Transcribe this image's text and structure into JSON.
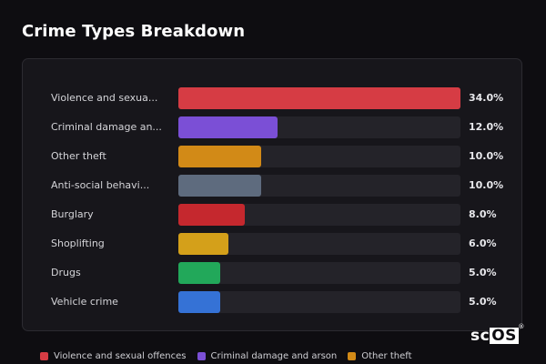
{
  "title": "Crime Types Breakdown",
  "logo": {
    "prefix": "sc",
    "boxed": "OS",
    "mark": "®"
  },
  "chart_data": {
    "type": "bar",
    "orientation": "horizontal",
    "categories": [
      "Violence and sexual offences",
      "Criminal damage and arson",
      "Other theft",
      "Anti-social behaviour",
      "Burglary",
      "Shoplifting",
      "Drugs",
      "Vehicle crime"
    ],
    "display_labels": [
      "Violence and sexua...",
      "Criminal damage an...",
      "Other theft",
      "Anti-social behavi...",
      "Burglary",
      "Shoplifting",
      "Drugs",
      "Vehicle crime"
    ],
    "values": [
      34.0,
      12.0,
      10.0,
      10.0,
      8.0,
      6.0,
      5.0,
      5.0
    ],
    "value_labels": [
      "34.0%",
      "12.0%",
      "10.0%",
      "10.0%",
      "8.0%",
      "6.0%",
      "5.0%",
      "5.0%"
    ],
    "colors": [
      "#d63c44",
      "#7b4fd6",
      "#d28a17",
      "#5e6b7e",
      "#c5282e",
      "#d4a01a",
      "#22a85a",
      "#3572d6"
    ],
    "xlim": [
      0,
      34
    ],
    "legend": {
      "placement": "bottom",
      "entries": [
        {
          "label": "Violence and sexual offences",
          "color": "#d63c44"
        },
        {
          "label": "Criminal damage and arson",
          "color": "#7b4fd6"
        },
        {
          "label": "Other theft",
          "color": "#d28a17"
        }
      ]
    }
  }
}
